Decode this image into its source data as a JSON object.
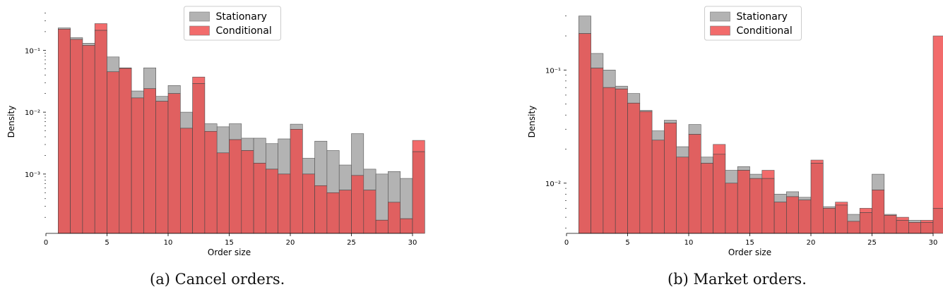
{
  "captions": [
    "(a) Cancel orders.",
    "(b) Market orders."
  ],
  "colors": {
    "stationary_fill": "#b3b3b3",
    "conditional_fill": "#f26b6b",
    "overlap_fill": "#e06060"
  },
  "chart_data": [
    {
      "type": "bar",
      "title": "",
      "xlabel": "Order size",
      "ylabel": "Density",
      "yscale": "log",
      "xlim": [
        0,
        30
      ],
      "ylim": [
        0.00011,
        0.45
      ],
      "xticks": [
        0,
        5,
        10,
        15,
        20,
        25,
        30
      ],
      "ytick_labels": [
        {
          "value": 0.1,
          "label": "10⁻¹"
        },
        {
          "value": 0.01,
          "label": "10⁻²"
        },
        {
          "value": 0.001,
          "label": "10⁻³"
        }
      ],
      "legend_position": "top-center",
      "bin_edges_start": 1,
      "bin_width": 1,
      "series": [
        {
          "name": "Stationary",
          "values": [
            0.23,
            0.16,
            0.13,
            0.21,
            0.078,
            0.051,
            0.022,
            0.052,
            0.018,
            0.027,
            0.01,
            0.029,
            0.0065,
            0.0058,
            0.0065,
            0.0038,
            0.0038,
            0.0031,
            0.0037,
            0.0064,
            0.0018,
            0.0034,
            0.0024,
            0.0014,
            0.0045,
            0.0012,
            0.001,
            0.0011,
            0.00085,
            0.0023
          ]
        },
        {
          "name": "Conditional",
          "values": [
            0.22,
            0.15,
            0.12,
            0.27,
            0.045,
            0.052,
            0.017,
            0.024,
            0.015,
            0.02,
            0.0055,
            0.037,
            0.0049,
            0.0022,
            0.0036,
            0.0024,
            0.0015,
            0.0012,
            0.001,
            0.0053,
            0.001,
            0.00065,
            0.0005,
            0.00055,
            0.00095,
            0.00055,
            0.00018,
            0.00035,
            0.00019,
            0.0035
          ]
        }
      ]
    },
    {
      "type": "bar",
      "title": "",
      "xlabel": "Order size",
      "ylabel": "Density",
      "yscale": "log",
      "xlim": [
        0,
        30
      ],
      "ylim": [
        0.0036,
        0.34
      ],
      "xticks": [
        0,
        5,
        10,
        15,
        20,
        25,
        30
      ],
      "ytick_labels": [
        {
          "value": 0.1,
          "label": "10⁻¹"
        },
        {
          "value": 0.01,
          "label": "10⁻²"
        }
      ],
      "legend_position": "top-center",
      "bin_edges_start": 1,
      "bin_width": 1,
      "series": [
        {
          "name": "Stationary",
          "values": [
            0.3,
            0.14,
            0.1,
            0.072,
            0.062,
            0.044,
            0.029,
            0.036,
            0.021,
            0.033,
            0.017,
            0.018,
            0.013,
            0.014,
            0.012,
            0.011,
            0.008,
            0.0084,
            0.0075,
            0.015,
            0.0062,
            0.0064,
            0.0053,
            0.0055,
            0.012,
            0.0053,
            0.0047,
            0.0047,
            0.0045,
            0.006
          ]
        },
        {
          "name": "Conditional",
          "values": [
            0.21,
            0.104,
            0.07,
            0.068,
            0.051,
            0.043,
            0.024,
            0.034,
            0.017,
            0.027,
            0.015,
            0.022,
            0.01,
            0.013,
            0.011,
            0.013,
            0.0068,
            0.0076,
            0.0071,
            0.016,
            0.006,
            0.0068,
            0.0046,
            0.006,
            0.0087,
            0.0052,
            0.005,
            0.0045,
            0.0047,
            0.2
          ]
        }
      ]
    }
  ]
}
